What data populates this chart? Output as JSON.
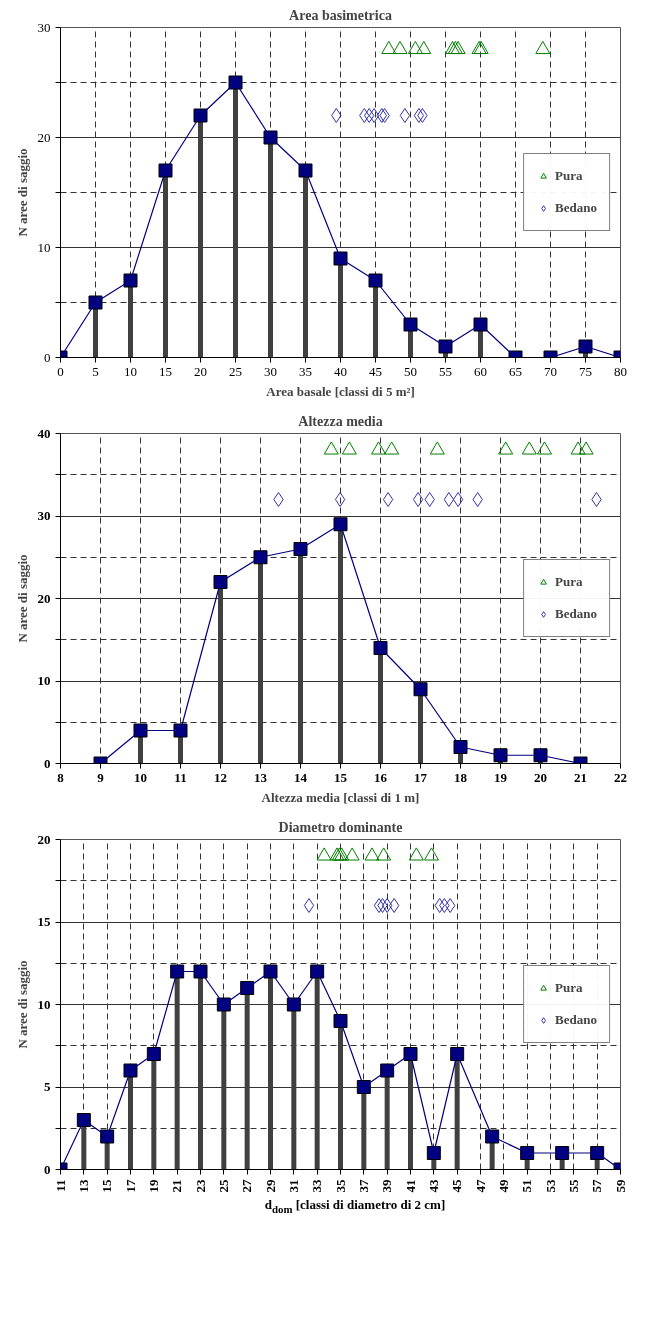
{
  "chart_data": [
    {
      "type": "lollipop",
      "title": "Area basimetrica",
      "xlabel": "Area basale [classi di 5 m²]",
      "ylabel": "N aree di saggio",
      "xlim": [
        0,
        80
      ],
      "xticks": [
        0,
        5,
        10,
        15,
        20,
        25,
        30,
        35,
        40,
        45,
        50,
        55,
        60,
        65,
        70,
        75,
        80
      ],
      "ylim": [
        0,
        30
      ],
      "yticks": [
        0,
        10,
        20,
        30,
        {
          "value": 5,
          "label": null
        },
        {
          "value": 15,
          "label": null
        },
        {
          "value": 25,
          "label": null
        }
      ],
      "grid": true,
      "legend": "right",
      "series": [
        {
          "color": "#000080",
          "marker": "square",
          "x": [
            0,
            5,
            10,
            15,
            20,
            25,
            30,
            35,
            40,
            45,
            50,
            55,
            60,
            65,
            70,
            75,
            80
          ],
          "values": [
            0,
            5,
            7,
            17,
            22,
            25,
            20,
            17,
            9,
            7,
            3,
            1,
            3,
            0,
            0,
            1,
            0
          ]
        },
        {
          "type": "line",
          "color": "#000080",
          "x": [
            0,
            5,
            10,
            15,
            20,
            25,
            30,
            35,
            40,
            45,
            50,
            55,
            60,
            65,
            70,
            75,
            80
          ],
          "values": [
            0,
            5,
            7,
            17,
            22,
            25,
            20,
            17,
            9,
            7,
            3,
            1,
            3,
            0,
            0,
            1,
            0
          ]
        },
        {
          "type": "scatter",
          "name": "Pura",
          "color": "#008000",
          "marker": "triangle",
          "x": [
            46.9,
            48.5,
            50.7,
            51.9,
            56.0,
            56.4,
            56.8,
            59.8,
            60.1,
            68.9
          ],
          "values": [
            28,
            28,
            28,
            28,
            28,
            28,
            28,
            28,
            28,
            28
          ]
        },
        {
          "type": "scatter",
          "name": "Bedano",
          "color": "#3333aa",
          "marker": "diamond",
          "x": [
            39.4,
            43.4,
            44.1,
            44.8,
            45.9,
            46.3,
            49.2,
            51.2,
            51.7
          ],
          "values": [
            22,
            22,
            22,
            22,
            22,
            22,
            22,
            22,
            22
          ]
        }
      ]
    },
    {
      "type": "lollipop",
      "title": "Altezza media",
      "xlabel": "Altezza media [classi di 1 m]",
      "ylabel": "N aree di saggio",
      "xlim": [
        8,
        22
      ],
      "xticks": [
        8,
        9,
        10,
        11,
        12,
        13,
        14,
        15,
        16,
        17,
        18,
        19,
        20,
        21,
        22
      ],
      "ylim": [
        0,
        40
      ],
      "yticks": [
        0,
        10,
        20,
        30,
        40,
        {
          "value": 5,
          "label": null
        },
        {
          "value": 15,
          "label": null
        },
        {
          "value": 25,
          "label": null
        },
        {
          "value": 35,
          "label": null
        }
      ],
      "grid": true,
      "legend": "right",
      "series": [
        {
          "color": "#000080",
          "marker": "square",
          "x": [
            9,
            10,
            11,
            12,
            13,
            14,
            15,
            16,
            17,
            18,
            19,
            20,
            21
          ],
          "values": [
            0,
            4,
            4,
            22,
            25,
            26,
            29,
            14,
            9,
            2,
            1,
            1,
            0
          ]
        },
        {
          "type": "line",
          "color": "#000080",
          "x": [
            9,
            10,
            11,
            12,
            13,
            14,
            15,
            16,
            17,
            18,
            19,
            20,
            21
          ],
          "values": [
            0,
            4,
            4,
            22,
            25,
            26,
            29,
            14,
            9,
            2,
            1,
            1,
            0
          ]
        },
        {
          "type": "scatter",
          "name": "Pura",
          "color": "#008000",
          "marker": "triangle",
          "x": [
            14.77,
            15.22,
            15.95,
            16.28,
            17.42,
            19.13,
            19.72,
            20.1,
            20.94,
            21.14
          ],
          "values": [
            38,
            38,
            38,
            38,
            38,
            38,
            38,
            38,
            38,
            38
          ]
        },
        {
          "type": "scatter",
          "name": "Bedano",
          "color": "#3333aa",
          "marker": "diamond",
          "x": [
            13.45,
            14.99,
            16.19,
            16.94,
            17.23,
            17.71,
            17.94,
            18.43,
            21.4
          ],
          "values": [
            32,
            32,
            32,
            32,
            32,
            32,
            32,
            32,
            32
          ]
        }
      ]
    },
    {
      "type": "lollipop",
      "title": "Diametro dominante",
      "xlabel": "d$_{dom}$ [classi di diametro di 2 cm]",
      "ylabel": "N aree di saggio",
      "xlim": [
        11,
        59
      ],
      "xticks": [
        11,
        13,
        15,
        17,
        19,
        21,
        23,
        25,
        27,
        29,
        31,
        33,
        35,
        37,
        39,
        41,
        43,
        45,
        47,
        49,
        51,
        53,
        55,
        57,
        59
      ],
      "ylim": [
        0,
        20
      ],
      "yticks": [
        0,
        5,
        10,
        15,
        20,
        {
          "value": 2.5,
          "label": null
        },
        {
          "value": 7.5,
          "label": null
        },
        {
          "value": 12.5,
          "label": null
        },
        {
          "value": 17.5,
          "label": null
        }
      ],
      "grid": true,
      "legend": "right",
      "series": [
        {
          "color": "#000080",
          "marker": "square",
          "x": [
            11,
            13,
            15,
            17,
            19,
            21,
            23,
            25,
            27,
            29,
            31,
            33,
            35,
            37,
            39,
            41,
            43,
            45,
            48,
            51,
            54,
            57,
            59
          ],
          "values": [
            0,
            3,
            2,
            6,
            7,
            12,
            12,
            10,
            11,
            12,
            10,
            12,
            9,
            5,
            6,
            7,
            1,
            7,
            2,
            1,
            1,
            1,
            0
          ]
        },
        {
          "type": "line",
          "color": "#000080",
          "x": [
            11,
            13,
            15,
            17,
            19,
            21,
            23,
            25,
            27,
            29,
            31,
            33,
            35,
            37,
            39,
            41,
            43,
            45,
            48,
            51,
            54,
            57,
            59
          ],
          "values": [
            0,
            3,
            2,
            6,
            7,
            12,
            12,
            10,
            11,
            12,
            10,
            12,
            9,
            5,
            6,
            7,
            1,
            7,
            2,
            1,
            1,
            1,
            0
          ]
        },
        {
          "type": "scatter",
          "name": "Pura",
          "color": "#008000",
          "marker": "triangle",
          "x": [
            33.6,
            34.7,
            34.9,
            35.1,
            36.0,
            37.7,
            38.7,
            41.5,
            42.8
          ],
          "values": [
            19,
            19,
            19,
            19,
            19,
            19,
            19,
            19,
            19
          ]
        },
        {
          "type": "scatter",
          "name": "Bedano",
          "color": "#3333aa",
          "marker": "diamond",
          "x": [
            32.3,
            38.3,
            38.6,
            39.0,
            39.6,
            43.5,
            43.9,
            44.4
          ],
          "values": [
            16,
            16,
            16,
            16,
            16,
            16,
            16,
            16
          ]
        }
      ]
    }
  ]
}
